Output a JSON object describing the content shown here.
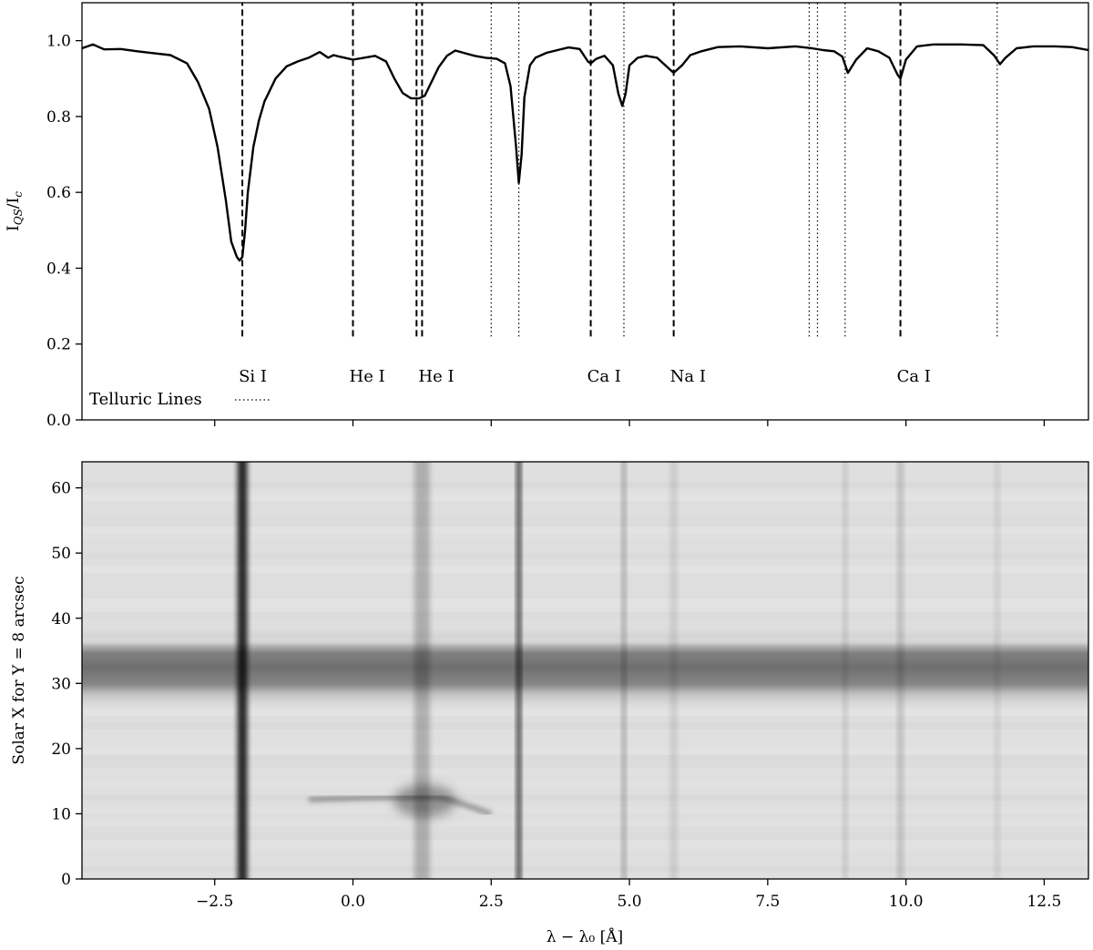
{
  "chart_data": [
    {
      "type": "line",
      "panel": "top",
      "ylabel_main": "I",
      "ylabel_sub_1": "QS",
      "ylabel_mid": "/I",
      "ylabel_sub_2": "c",
      "xlim": [
        -4.9,
        13.3
      ],
      "ylim": [
        0.0,
        1.1
      ],
      "y_ticks": [
        0.0,
        0.2,
        0.4,
        0.6,
        0.8,
        1.0
      ],
      "y_tick_labels": [
        "0.0",
        "0.2",
        "0.4",
        "0.6",
        "0.8",
        "1.0"
      ],
      "x_ticks": [
        -2.5,
        0.0,
        2.5,
        5.0,
        7.5,
        10.0,
        12.5
      ],
      "series": [
        {
          "x": [
            -4.9,
            -4.7,
            -4.5,
            -4.2,
            -3.9,
            -3.6,
            -3.3,
            -3.0,
            -2.8,
            -2.6,
            -2.45,
            -2.3,
            -2.2,
            -2.1,
            -2.05,
            -2.0,
            -1.95,
            -1.9,
            -1.8,
            -1.7,
            -1.6,
            -1.4,
            -1.2,
            -1.0,
            -0.8,
            -0.6,
            -0.45,
            -0.35,
            -0.25,
            -0.15,
            0.0,
            0.2,
            0.4,
            0.6,
            0.75,
            0.9,
            1.05,
            1.2,
            1.3,
            1.4,
            1.55,
            1.7,
            1.85,
            2.0,
            2.2,
            2.4,
            2.6,
            2.75,
            2.85,
            2.95,
            3.0,
            3.05,
            3.1,
            3.2,
            3.3,
            3.5,
            3.7,
            3.9,
            4.1,
            4.25,
            4.3,
            4.4,
            4.55,
            4.7,
            4.8,
            4.87,
            4.93,
            5.0,
            5.15,
            5.3,
            5.5,
            5.65,
            5.8,
            5.95,
            6.1,
            6.3,
            6.6,
            7.0,
            7.5,
            8.0,
            8.3,
            8.5,
            8.7,
            8.85,
            8.95,
            9.1,
            9.3,
            9.5,
            9.7,
            9.85,
            9.9,
            10.0,
            10.2,
            10.5,
            11.0,
            11.4,
            11.6,
            11.7,
            11.8,
            12.0,
            12.3,
            12.7,
            13.0,
            13.3
          ],
          "y": [
            0.98,
            0.99,
            0.977,
            0.978,
            0.972,
            0.967,
            0.962,
            0.94,
            0.89,
            0.82,
            0.72,
            0.58,
            0.47,
            0.43,
            0.42,
            0.43,
            0.5,
            0.6,
            0.72,
            0.79,
            0.84,
            0.9,
            0.932,
            0.945,
            0.955,
            0.97,
            0.955,
            0.962,
            0.958,
            0.955,
            0.95,
            0.955,
            0.96,
            0.945,
            0.9,
            0.862,
            0.848,
            0.848,
            0.855,
            0.885,
            0.93,
            0.96,
            0.974,
            0.968,
            0.96,
            0.955,
            0.952,
            0.94,
            0.88,
            0.72,
            0.625,
            0.7,
            0.85,
            0.935,
            0.955,
            0.968,
            0.975,
            0.982,
            0.978,
            0.945,
            0.94,
            0.952,
            0.96,
            0.935,
            0.86,
            0.828,
            0.86,
            0.935,
            0.955,
            0.96,
            0.955,
            0.935,
            0.915,
            0.935,
            0.962,
            0.972,
            0.983,
            0.985,
            0.98,
            0.985,
            0.98,
            0.975,
            0.972,
            0.958,
            0.915,
            0.95,
            0.98,
            0.972,
            0.955,
            0.91,
            0.9,
            0.95,
            0.985,
            0.99,
            0.99,
            0.988,
            0.96,
            0.938,
            0.955,
            0.98,
            0.985,
            0.985,
            0.983,
            0.975
          ]
        }
      ],
      "line_markers": [
        {
          "label": "Si I",
          "x": -2.0,
          "style": "dashed",
          "ymax": 1.1
        },
        {
          "label": "He I",
          "x": 0.0,
          "style": "dashed",
          "ymax": 1.1
        },
        {
          "label": "",
          "x": 1.15,
          "style": "dashed",
          "ymax": 1.1
        },
        {
          "label": "He I",
          "x": 1.25,
          "style": "dashed",
          "ymax": 1.1
        },
        {
          "label": "",
          "x": 2.5,
          "style": "dotted",
          "ymax": 1.1
        },
        {
          "label": "",
          "x": 3.0,
          "style": "dotted",
          "ymax": 1.1
        },
        {
          "label": "Ca I",
          "x": 4.3,
          "style": "dashed",
          "ymax": 1.1
        },
        {
          "label": "",
          "x": 4.9,
          "style": "dotted",
          "ymax": 1.1
        },
        {
          "label": "Na I",
          "x": 5.8,
          "style": "dashed",
          "ymax": 1.1
        },
        {
          "label": "",
          "x": 8.25,
          "style": "dotted",
          "ymax": 1.1
        },
        {
          "label": "",
          "x": 8.4,
          "style": "dotted",
          "ymax": 1.1
        },
        {
          "label": "",
          "x": 8.9,
          "style": "dotted",
          "ymax": 1.1
        },
        {
          "label": "Ca I",
          "x": 9.9,
          "style": "dashed",
          "ymax": 1.1
        },
        {
          "label": "",
          "x": 11.65,
          "style": "dotted",
          "ymax": 1.1
        }
      ],
      "marker_ymin": 0.22,
      "label_y": 0.115,
      "telluric_legend_label": "Telluric Lines"
    },
    {
      "type": "heatmap",
      "panel": "bottom",
      "xlabel": "λ − λ₀ [Å]",
      "ylabel": "Solar X for Y = 8  arcsec",
      "xlim": [
        -4.9,
        13.3
      ],
      "ylim": [
        0,
        64
      ],
      "x_ticks": [
        -2.5,
        0.0,
        2.5,
        5.0,
        7.5,
        10.0,
        12.5
      ],
      "x_tick_labels": [
        "−2.5",
        "0.0",
        "2.5",
        "5.0",
        "7.5",
        "10.0",
        "12.5"
      ],
      "y_ticks": [
        0,
        10,
        20,
        30,
        40,
        50,
        60
      ],
      "y_tick_labels": [
        "0",
        "10",
        "20",
        "30",
        "40",
        "50",
        "60"
      ],
      "absorption_lines": [
        {
          "x": -2.0,
          "width": 0.18,
          "depth": 0.82
        },
        {
          "x": 1.25,
          "width": 0.28,
          "depth": 0.22
        },
        {
          "x": 3.0,
          "width": 0.08,
          "depth": 0.75
        },
        {
          "x": 4.9,
          "width": 0.07,
          "depth": 0.28
        },
        {
          "x": 5.8,
          "width": 0.12,
          "depth": 0.1
        },
        {
          "x": 8.9,
          "width": 0.07,
          "depth": 0.14
        },
        {
          "x": 9.9,
          "width": 0.1,
          "depth": 0.17
        },
        {
          "x": 11.65,
          "width": 0.08,
          "depth": 0.1
        }
      ],
      "dark_band_y": [
        28,
        37
      ],
      "dark_band_level": 0.55,
      "feature_y": 12
    }
  ],
  "colors": {
    "line": "#000000",
    "background": "#ffffff",
    "frame": "#000000"
  }
}
